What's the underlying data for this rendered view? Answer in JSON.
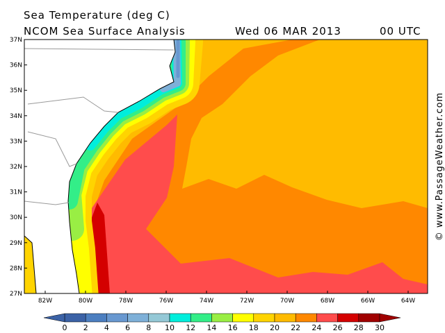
{
  "header": {
    "title": "Sea Temperature (deg C)",
    "subtitle": "NCOM Sea Surface Analysis",
    "date": "Wed 06 MAR 2013",
    "time": "00 UTC"
  },
  "map": {
    "lat_labels": [
      "37N",
      "36N",
      "35N",
      "34N",
      "33N",
      "32N",
      "31N",
      "30N",
      "29N",
      "28N",
      "27N"
    ],
    "lon_labels": [
      "82W",
      "80W",
      "78W",
      "76W",
      "74W",
      "72W",
      "70W",
      "68W",
      "66W",
      "64W"
    ]
  },
  "colorbar": {
    "ticks": [
      0,
      2,
      4,
      6,
      8,
      10,
      12,
      14,
      16,
      18,
      20,
      22,
      24,
      26,
      28,
      30
    ],
    "colors": [
      "#3b62a6",
      "#4c7fc0",
      "#6898d0",
      "#7eb0d8",
      "#94c8d6",
      "#00eedc",
      "#33ee88",
      "#99ee44",
      "#ffff00",
      "#ffd400",
      "#ffbb00",
      "#ff8800",
      "#ff4c4c",
      "#d40000",
      "#a00000"
    ]
  },
  "credit": "© www.PassageWeather.com"
}
